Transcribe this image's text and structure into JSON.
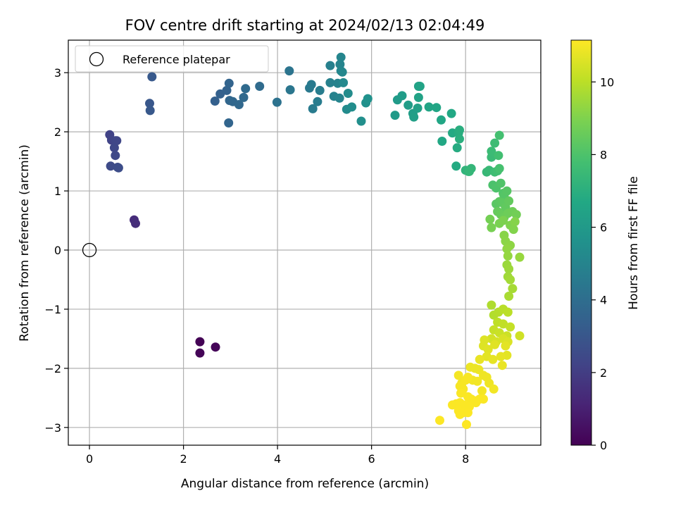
{
  "chart_data": {
    "type": "scatter",
    "title": "FOV centre drift starting at 2024/02/13 02:04:49",
    "xlabel": "Angular distance from reference (arcmin)",
    "ylabel": "Rotation from reference (arcmin)",
    "xlim": [
      -0.45,
      9.6
    ],
    "ylim": [
      -3.3,
      3.55
    ],
    "xticks": [
      0,
      2,
      4,
      6,
      8
    ],
    "yticks": [
      -3,
      -2,
      -1,
      0,
      1,
      2,
      3
    ],
    "grid": true,
    "legend": {
      "position": "top-left",
      "entries": [
        "Reference platepar"
      ]
    },
    "reference_point": {
      "x": 0,
      "y": 0
    },
    "colorbar": {
      "label": "Hours from first FF file",
      "min": 0,
      "max": 11.15,
      "ticks": [
        0,
        2,
        4,
        6,
        8,
        10
      ],
      "colormap": "viridis"
    },
    "points": [
      [
        2.35,
        -1.55,
        0.05
      ],
      [
        2.35,
        -1.74,
        0.1
      ],
      [
        2.68,
        -1.64,
        0.15
      ],
      [
        0.95,
        0.51,
        1.4
      ],
      [
        0.98,
        0.45,
        1.45
      ],
      [
        0.43,
        1.95,
        2.2
      ],
      [
        0.47,
        1.86,
        2.25
      ],
      [
        0.55,
        1.85,
        2.3
      ],
      [
        0.58,
        1.85,
        2.35
      ],
      [
        0.53,
        1.73,
        2.4
      ],
      [
        0.55,
        1.6,
        2.45
      ],
      [
        0.45,
        1.42,
        2.5
      ],
      [
        0.6,
        1.4,
        2.55
      ],
      [
        0.62,
        1.39,
        2.6
      ],
      [
        1.28,
        2.48,
        3.0
      ],
      [
        1.29,
        2.36,
        3.05
      ],
      [
        1.33,
        2.93,
        3.1
      ],
      [
        2.67,
        2.52,
        3.4
      ],
      [
        2.78,
        2.64,
        3.45
      ],
      [
        2.92,
        2.7,
        3.5
      ],
      [
        2.97,
        2.82,
        3.55
      ],
      [
        2.96,
        2.15,
        3.6
      ],
      [
        2.98,
        2.53,
        3.65
      ],
      [
        3.05,
        2.51,
        3.7
      ],
      [
        3.18,
        2.46,
        3.75
      ],
      [
        3.28,
        2.58,
        3.8
      ],
      [
        3.32,
        2.73,
        3.85
      ],
      [
        3.62,
        2.77,
        3.9
      ],
      [
        3.99,
        2.5,
        4.2
      ],
      [
        4.25,
        3.03,
        4.3
      ],
      [
        4.27,
        2.71,
        4.35
      ],
      [
        4.68,
        2.74,
        4.5
      ],
      [
        4.72,
        2.8,
        4.55
      ],
      [
        4.75,
        2.39,
        4.6
      ],
      [
        4.85,
        2.51,
        4.65
      ],
      [
        4.9,
        2.7,
        4.7
      ],
      [
        5.12,
        3.12,
        4.8
      ],
      [
        5.12,
        2.83,
        4.85
      ],
      [
        5.2,
        2.6,
        4.9
      ],
      [
        5.28,
        2.82,
        4.95
      ],
      [
        5.32,
        2.57,
        5.0
      ],
      [
        5.33,
        3.14,
        5.0
      ],
      [
        5.35,
        3.26,
        5.05
      ],
      [
        5.35,
        3.03,
        5.1
      ],
      [
        5.38,
        3.01,
        5.15
      ],
      [
        5.4,
        2.83,
        5.2
      ],
      [
        5.47,
        2.38,
        5.3
      ],
      [
        5.5,
        2.65,
        5.35
      ],
      [
        5.58,
        2.42,
        5.4
      ],
      [
        5.78,
        2.18,
        5.5
      ],
      [
        5.88,
        2.49,
        5.55
      ],
      [
        5.92,
        2.56,
        5.6
      ],
      [
        6.5,
        2.28,
        6.0
      ],
      [
        6.55,
        2.54,
        6.05
      ],
      [
        6.65,
        2.61,
        6.1
      ],
      [
        6.78,
        2.45,
        6.15
      ],
      [
        6.88,
        2.31,
        6.2
      ],
      [
        6.9,
        2.25,
        6.25
      ],
      [
        6.98,
        2.4,
        6.3
      ],
      [
        7.0,
        2.77,
        6.35
      ],
      [
        7.0,
        2.58,
        6.4
      ],
      [
        7.03,
        2.77,
        6.45
      ],
      [
        7.22,
        2.42,
        6.5
      ],
      [
        7.38,
        2.41,
        6.55
      ],
      [
        7.48,
        2.2,
        6.6
      ],
      [
        7.5,
        1.84,
        6.65
      ],
      [
        7.7,
        2.31,
        6.7
      ],
      [
        7.72,
        1.98,
        6.75
      ],
      [
        7.8,
        1.42,
        6.8
      ],
      [
        7.82,
        1.73,
        6.85
      ],
      [
        7.85,
        1.98,
        6.9
      ],
      [
        7.87,
        2.03,
        6.95
      ],
      [
        7.87,
        1.88,
        7.0
      ],
      [
        8.0,
        1.35,
        7.2
      ],
      [
        8.06,
        1.33,
        7.25
      ],
      [
        8.12,
        1.38,
        7.3
      ],
      [
        8.08,
        1.33,
        7.35
      ],
      [
        8.45,
        1.32,
        7.4
      ],
      [
        8.5,
        1.35,
        7.45
      ],
      [
        8.55,
        1.57,
        7.5
      ],
      [
        8.55,
        1.67,
        7.55
      ],
      [
        8.62,
        1.81,
        7.6
      ],
      [
        8.62,
        1.32,
        7.65
      ],
      [
        8.68,
        1.34,
        7.7
      ],
      [
        8.7,
        1.6,
        7.75
      ],
      [
        8.72,
        1.94,
        7.8
      ],
      [
        8.72,
        1.38,
        7.85
      ],
      [
        8.58,
        1.1,
        7.95
      ],
      [
        8.65,
        1.05,
        8.0
      ],
      [
        8.75,
        1.13,
        8.05
      ],
      [
        8.8,
        0.96,
        8.1
      ],
      [
        8.82,
        0.91,
        8.15
      ],
      [
        8.88,
        1.0,
        8.2
      ],
      [
        8.65,
        0.78,
        8.25
      ],
      [
        8.72,
        0.82,
        8.3
      ],
      [
        8.78,
        0.8,
        8.35
      ],
      [
        8.85,
        0.72,
        8.4
      ],
      [
        8.92,
        0.83,
        8.45
      ],
      [
        8.68,
        0.65,
        8.5
      ],
      [
        8.75,
        0.6,
        8.55
      ],
      [
        8.82,
        0.55,
        8.6
      ],
      [
        8.9,
        0.62,
        8.65
      ],
      [
        9.0,
        0.65,
        8.7
      ],
      [
        9.08,
        0.6,
        8.75
      ],
      [
        8.52,
        0.52,
        8.8
      ],
      [
        8.55,
        0.38,
        8.85
      ],
      [
        8.72,
        0.45,
        8.9
      ],
      [
        8.8,
        0.5,
        8.95
      ],
      [
        8.95,
        0.42,
        9.0
      ],
      [
        9.02,
        0.35,
        9.05
      ],
      [
        9.05,
        0.48,
        9.1
      ],
      [
        8.82,
        0.25,
        9.15
      ],
      [
        8.85,
        0.15,
        9.2
      ],
      [
        8.95,
        0.08,
        9.25
      ],
      [
        8.88,
        0.02,
        9.3
      ],
      [
        8.9,
        -0.1,
        9.35
      ],
      [
        9.15,
        -0.12,
        9.4
      ],
      [
        8.88,
        -0.25,
        9.45
      ],
      [
        8.92,
        -0.32,
        9.5
      ],
      [
        8.9,
        -0.45,
        9.55
      ],
      [
        8.95,
        -0.5,
        9.6
      ],
      [
        9.0,
        -0.65,
        9.65
      ],
      [
        8.92,
        -0.78,
        9.7
      ],
      [
        8.55,
        -0.93,
        9.8
      ],
      [
        8.6,
        -1.1,
        9.85
      ],
      [
        8.7,
        -1.05,
        9.9
      ],
      [
        8.8,
        -1.0,
        9.95
      ],
      [
        8.9,
        -1.05,
        10.0
      ],
      [
        8.68,
        -1.22,
        10.05
      ],
      [
        8.8,
        -1.25,
        10.1
      ],
      [
        8.95,
        -1.3,
        10.15
      ],
      [
        8.6,
        -1.35,
        10.2
      ],
      [
        8.72,
        -1.4,
        10.25
      ],
      [
        8.88,
        -1.45,
        10.3
      ],
      [
        9.15,
        -1.45,
        10.35
      ],
      [
        8.55,
        -1.5,
        10.4
      ],
      [
        8.65,
        -1.55,
        10.45
      ],
      [
        8.8,
        -1.5,
        10.5
      ],
      [
        8.9,
        -1.55,
        10.55
      ],
      [
        8.4,
        -1.52,
        10.6
      ],
      [
        8.38,
        -1.62,
        10.6
      ],
      [
        8.48,
        -1.68,
        10.65
      ],
      [
        8.62,
        -1.6,
        10.65
      ],
      [
        8.85,
        -1.62,
        10.7
      ],
      [
        8.88,
        -1.78,
        10.7
      ],
      [
        8.45,
        -1.8,
        10.7
      ],
      [
        8.58,
        -1.85,
        10.75
      ],
      [
        8.75,
        -1.8,
        10.75
      ],
      [
        8.78,
        -1.95,
        10.8
      ],
      [
        8.3,
        -1.85,
        10.8
      ],
      [
        8.1,
        -1.98,
        10.85
      ],
      [
        8.2,
        -2.0,
        10.85
      ],
      [
        8.28,
        -2.02,
        10.85
      ],
      [
        8.38,
        -2.12,
        10.9
      ],
      [
        8.45,
        -2.15,
        10.9
      ],
      [
        8.5,
        -2.25,
        10.9
      ],
      [
        8.6,
        -2.35,
        10.95
      ],
      [
        8.15,
        -2.2,
        10.95
      ],
      [
        8.25,
        -2.22,
        10.95
      ],
      [
        8.35,
        -2.38,
        11.0
      ],
      [
        7.85,
        -2.12,
        11.0
      ],
      [
        7.92,
        -2.25,
        11.0
      ],
      [
        8.0,
        -2.2,
        11.05
      ],
      [
        8.05,
        -2.15,
        11.05
      ],
      [
        7.88,
        -2.3,
        11.05
      ],
      [
        7.95,
        -2.35,
        11.05
      ],
      [
        7.9,
        -2.42,
        11.1
      ],
      [
        8.05,
        -2.48,
        11.1
      ],
      [
        8.12,
        -2.52,
        11.1
      ],
      [
        8.2,
        -2.55,
        11.1
      ],
      [
        8.3,
        -2.52,
        11.1
      ],
      [
        8.38,
        -2.52,
        11.1
      ],
      [
        8.22,
        -2.58,
        11.1
      ],
      [
        7.72,
        -2.62,
        11.12
      ],
      [
        7.8,
        -2.6,
        11.12
      ],
      [
        7.88,
        -2.58,
        11.12
      ],
      [
        7.98,
        -2.62,
        11.12
      ],
      [
        8.08,
        -2.65,
        11.12
      ],
      [
        7.85,
        -2.72,
        11.13
      ],
      [
        7.95,
        -2.75,
        11.13
      ],
      [
        8.05,
        -2.75,
        11.13
      ],
      [
        7.88,
        -2.78,
        11.13
      ],
      [
        7.45,
        -2.88,
        11.14
      ],
      [
        8.02,
        -2.95,
        11.15
      ]
    ]
  }
}
